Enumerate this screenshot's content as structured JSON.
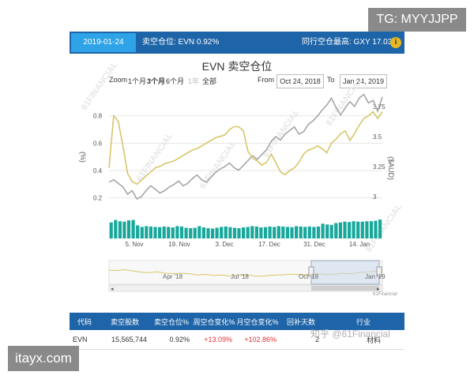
{
  "watermarks": {
    "telegram": "TG: MYYJJPP",
    "site": "itayx.com",
    "zhihu": "知乎 @61Financial"
  },
  "header": {
    "date": "2019-01-24",
    "short_position": "卖空仓位: EVN 0.92%",
    "peer_highest": "同行空仓最高: GXY 17.03%",
    "info_icon": "i"
  },
  "chart": {
    "title": "EVN 卖空仓位",
    "zoom_label": "Zoom",
    "zoom_options": [
      "1个月",
      "3个月",
      "6个月",
      "1年",
      "全部"
    ],
    "zoom_selected": "3个月",
    "from_label": "From",
    "from_date": "Oct 24, 2018",
    "to_label": "To",
    "to_date": "Jan 24, 2019",
    "left_axis_label": "(%)",
    "right_axis_label": "($AUD)",
    "navigator_labels": [
      "Apr '18",
      "Jul '18",
      "Oct '18",
      "Jan '19"
    ],
    "credit": "61Financial",
    "background_watermark": "61FINANCIAL",
    "colors": {
      "short_line": "#d8c66a",
      "price_line": "#a6a6a6",
      "volume_bar": "#18a89b",
      "header": "#1e64a8",
      "accent": "#2ea3e8"
    }
  },
  "chart_data": {
    "type": "line",
    "title": "EVN 卖空仓位",
    "xlabel": "",
    "x_ticks": [
      "5. Nov",
      "19. Nov",
      "3. Dec",
      "17. Dec",
      "31. Dec",
      "14. Jan"
    ],
    "left_axis": {
      "label": "(%)",
      "ticks": [
        0.2,
        0.4,
        0.6,
        0.8
      ],
      "range": [
        0.1,
        1.0
      ]
    },
    "right_axis": {
      "label": "($AUD)",
      "ticks": [
        3,
        3.25,
        3.5,
        3.75
      ],
      "range": [
        2.875,
        3.9
      ]
    },
    "series": [
      {
        "axis": "left",
        "values": [
          0.42,
          0.8,
          0.76,
          0.58,
          0.38,
          0.32,
          0.3,
          0.33,
          0.36,
          0.39,
          0.42,
          0.43,
          0.45,
          0.46,
          0.47,
          0.49,
          0.51,
          0.53,
          0.55,
          0.56,
          0.58,
          0.6,
          0.62,
          0.64,
          0.65,
          0.66,
          0.7,
          0.72,
          0.72,
          0.69,
          0.54,
          0.49,
          0.47,
          0.44,
          0.46,
          0.52,
          0.46,
          0.39,
          0.37,
          0.4,
          0.42,
          0.46,
          0.52,
          0.55,
          0.56,
          0.58,
          0.56,
          0.53,
          0.6,
          0.63,
          0.67,
          0.69,
          0.62,
          0.67,
          0.73,
          0.78,
          0.8,
          0.83,
          0.78,
          0.83
        ]
      },
      {
        "axis": "right",
        "values": [
          3.12,
          3.14,
          3.11,
          3.08,
          3.02,
          3.05,
          2.98,
          3.0,
          3.05,
          3.09,
          3.06,
          3.03,
          3.05,
          3.08,
          3.1,
          3.13,
          3.09,
          3.11,
          3.15,
          3.18,
          3.14,
          3.12,
          3.16,
          3.2,
          3.23,
          3.25,
          3.28,
          3.24,
          3.22,
          3.26,
          3.3,
          3.34,
          3.31,
          3.35,
          3.39,
          3.46,
          3.5,
          3.47,
          3.52,
          3.55,
          3.58,
          3.52,
          3.54,
          3.6,
          3.63,
          3.67,
          3.72,
          3.76,
          3.82,
          3.74,
          3.68,
          3.74,
          3.79,
          3.75,
          3.82,
          3.85,
          3.78,
          3.8,
          3.71,
          3.83
        ]
      }
    ],
    "volume_bars": {
      "count": 62,
      "levels": [
        0.78,
        0.9,
        0.84,
        0.82,
        0.88,
        0.9,
        0.64,
        0.56,
        0.6,
        0.58,
        0.56,
        0.55,
        0.58,
        0.56,
        0.54,
        0.6,
        0.58,
        0.52,
        0.5,
        0.52,
        0.6,
        0.54,
        0.5,
        0.48,
        0.52,
        0.56,
        0.58,
        0.55,
        0.52,
        0.5,
        0.54,
        0.56,
        0.6,
        0.58,
        0.54,
        0.55,
        0.58,
        0.56,
        0.6,
        0.58,
        0.56,
        0.55,
        0.6,
        0.58,
        0.56,
        0.58,
        0.56,
        0.58,
        0.72,
        0.68,
        0.66,
        0.75,
        0.78,
        0.82,
        0.8,
        0.84,
        0.82,
        0.82,
        0.84,
        0.84,
        0.86,
        0.92
      ]
    }
  },
  "table": {
    "headers": [
      "代码",
      "卖空股数",
      "卖空仓位%",
      "周空仓变化%",
      "月空仓变化%",
      "回补天数",
      "行业"
    ],
    "rows": [
      [
        "EVN",
        "15,565,744",
        "0.92%",
        "+13.09%",
        "+102.86%",
        "2",
        "材料"
      ]
    ]
  }
}
